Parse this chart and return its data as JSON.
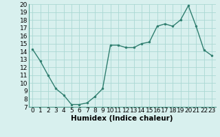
{
  "x": [
    0,
    1,
    2,
    3,
    4,
    5,
    6,
    7,
    8,
    9,
    10,
    11,
    12,
    13,
    14,
    15,
    16,
    17,
    18,
    19,
    20,
    21,
    22,
    23
  ],
  "y": [
    14.3,
    12.8,
    11.0,
    9.3,
    8.5,
    7.3,
    7.3,
    7.5,
    8.3,
    9.3,
    14.8,
    14.8,
    14.5,
    14.5,
    15.0,
    15.2,
    17.2,
    17.5,
    17.2,
    18.0,
    19.8,
    17.2,
    14.2,
    13.5
  ],
  "xlim": [
    -0.5,
    23.5
  ],
  "ylim": [
    7,
    20
  ],
  "xticks": [
    0,
    1,
    2,
    3,
    4,
    5,
    6,
    7,
    8,
    9,
    10,
    11,
    12,
    13,
    14,
    15,
    16,
    17,
    18,
    19,
    20,
    21,
    22,
    23
  ],
  "yticks": [
    7,
    8,
    9,
    10,
    11,
    12,
    13,
    14,
    15,
    16,
    17,
    18,
    19,
    20
  ],
  "xlabel": "Humidex (Indice chaleur)",
  "line_color": "#2e7d6e",
  "marker_color": "#2e7d6e",
  "bg_color": "#d8f0ee",
  "grid_color": "#aad8d3",
  "label_fontsize": 7.5,
  "tick_fontsize": 6.5
}
